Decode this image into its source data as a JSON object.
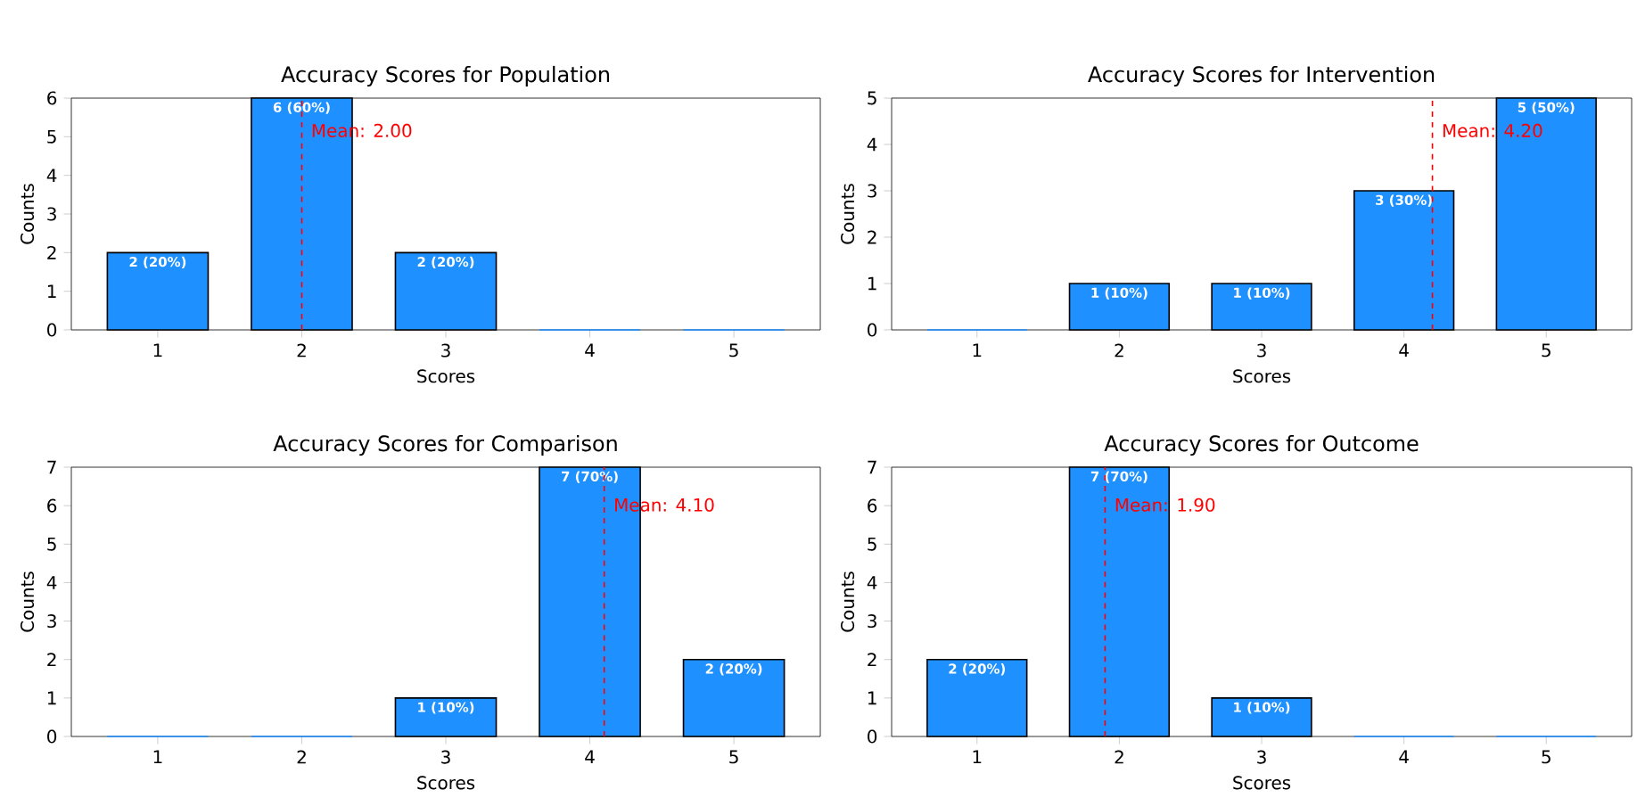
{
  "chart_data": [
    {
      "type": "bar",
      "title": "Accuracy Scores for Population",
      "xlabel": "Scores",
      "ylabel": "Counts",
      "x": [
        1,
        2,
        3,
        4,
        5
      ],
      "values": [
        2,
        6,
        2,
        0,
        0
      ],
      "value_labels": [
        "2 (20%)",
        "6 (60%)",
        "2 (20%)",
        null,
        null
      ],
      "color": "#1e90ff",
      "xlim": [
        0.4,
        5.6
      ],
      "xticks": [
        1,
        2,
        3,
        4,
        5
      ],
      "ylim": [
        0,
        6
      ],
      "yticks": [
        0,
        1,
        2,
        3,
        4,
        5,
        6
      ],
      "ref_lines": [
        {
          "axis": "x",
          "value": 2.0,
          "label": "Mean: 2.00",
          "color": "#ff0000",
          "line_style": "dashed"
        }
      ]
    },
    {
      "type": "bar",
      "title": "Accuracy Scores for Intervention",
      "xlabel": "Scores",
      "ylabel": "Counts",
      "x": [
        1,
        2,
        3,
        4,
        5
      ],
      "values": [
        0,
        1,
        1,
        3,
        5
      ],
      "value_labels": [
        null,
        "1 (10%)",
        "1 (10%)",
        "3 (30%)",
        "5 (50%)"
      ],
      "color": "#1e90ff",
      "xlim": [
        0.4,
        5.6
      ],
      "xticks": [
        1,
        2,
        3,
        4,
        5
      ],
      "ylim": [
        0,
        5
      ],
      "yticks": [
        0,
        1,
        2,
        3,
        4,
        5
      ],
      "ref_lines": [
        {
          "axis": "x",
          "value": 4.2,
          "label": "Mean: 4.20",
          "color": "#ff0000",
          "line_style": "dashed"
        }
      ]
    },
    {
      "type": "bar",
      "title": "Accuracy Scores for Comparison",
      "xlabel": "Scores",
      "ylabel": "Counts",
      "x": [
        1,
        2,
        3,
        4,
        5
      ],
      "values": [
        0,
        0,
        1,
        7,
        2
      ],
      "value_labels": [
        null,
        null,
        "1 (10%)",
        "7 (70%)",
        "2 (20%)"
      ],
      "color": "#1e90ff",
      "xlim": [
        0.4,
        5.6
      ],
      "xticks": [
        1,
        2,
        3,
        4,
        5
      ],
      "ylim": [
        0,
        7
      ],
      "yticks": [
        0,
        1,
        2,
        3,
        4,
        5,
        6,
        7
      ],
      "ref_lines": [
        {
          "axis": "x",
          "value": 4.1,
          "label": "Mean: 4.10",
          "color": "#ff0000",
          "line_style": "dashed"
        }
      ]
    },
    {
      "type": "bar",
      "title": "Accuracy Scores for Outcome",
      "xlabel": "Scores",
      "ylabel": "Counts",
      "x": [
        1,
        2,
        3,
        4,
        5
      ],
      "values": [
        2,
        7,
        1,
        0,
        0
      ],
      "value_labels": [
        "2 (20%)",
        "7 (70%)",
        "1 (10%)",
        null,
        null
      ],
      "color": "#1e90ff",
      "xlim": [
        0.4,
        5.6
      ],
      "xticks": [
        1,
        2,
        3,
        4,
        5
      ],
      "ylim": [
        0,
        7
      ],
      "yticks": [
        0,
        1,
        2,
        3,
        4,
        5,
        6,
        7
      ],
      "ref_lines": [
        {
          "axis": "x",
          "value": 1.9,
          "label": "Mean: 1.90",
          "color": "#ff0000",
          "line_style": "dashed"
        }
      ]
    }
  ]
}
